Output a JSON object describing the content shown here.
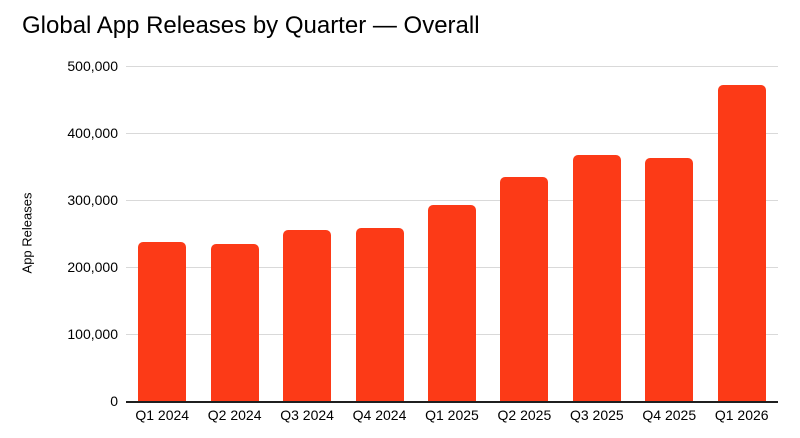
{
  "colors": {
    "bar": "#fc3a17",
    "gridline": "#d9d9d9",
    "axis_line": "#1f1f1f",
    "text": "#000000",
    "background": "#ffffff"
  },
  "chart_data": {
    "type": "bar",
    "title": "Global App Releases by Quarter — Overall",
    "xlabel": "",
    "ylabel": "App Releases",
    "categories": [
      "Q1 2024",
      "Q2 2024",
      "Q3 2024",
      "Q4 2024",
      "Q1 2025",
      "Q2 2025",
      "Q3 2025",
      "Q4 2025",
      "Q1 2026"
    ],
    "values": [
      238000,
      235000,
      256000,
      258000,
      293000,
      335000,
      367000,
      363000,
      471000
    ],
    "ylim": [
      0,
      500000
    ],
    "ytick_values": [
      0,
      100000,
      200000,
      300000,
      400000,
      500000
    ],
    "ytick_labels": [
      "0",
      "100,000",
      "200,000",
      "300,000",
      "400,000",
      "500,000"
    ],
    "grid": true,
    "legend": false
  }
}
